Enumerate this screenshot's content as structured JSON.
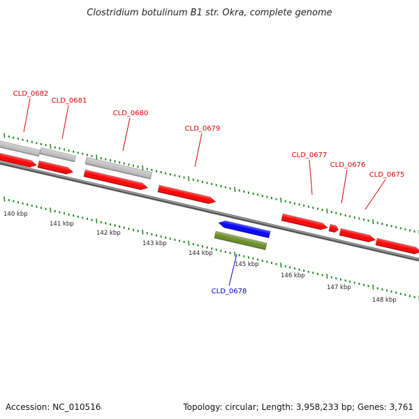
{
  "title": "Clostridium botulinum B1 str. Okra, complete genome",
  "colors": {
    "forward": "#ff0000",
    "reverse": "#0000ff",
    "other": "#6b8e23",
    "pseudo": "#c0c0c0",
    "ticks": "#228b22",
    "backbone": "#808080"
  },
  "genes": [
    {
      "label": "CLD_0682",
      "strand": "forward",
      "label_color": "red"
    },
    {
      "label": "CLD_0681",
      "strand": "forward",
      "label_color": "red"
    },
    {
      "label": "CLD_0680",
      "strand": "forward",
      "label_color": "red"
    },
    {
      "label": "CLD_0679",
      "strand": "forward",
      "label_color": "red"
    },
    {
      "label": "CLD_0677",
      "strand": "forward",
      "label_color": "red"
    },
    {
      "label": "CLD_0676",
      "strand": "forward",
      "label_color": "red"
    },
    {
      "label": "CLD_0675",
      "strand": "forward",
      "label_color": "red"
    },
    {
      "label": "CLD_0678",
      "strand": "reverse",
      "label_color": "blue"
    }
  ],
  "kbp_labels": [
    "140 kbp",
    "141 kbp",
    "142 kbp",
    "143 kbp",
    "144 kbp",
    "145 kbp",
    "146 kbp",
    "147 kbp",
    "148 kbp"
  ],
  "footer": {
    "accession": "Accession: NC_010516",
    "topology": "Topology: circular; Length: 3,958,233 bp; Genes: 3,761"
  }
}
